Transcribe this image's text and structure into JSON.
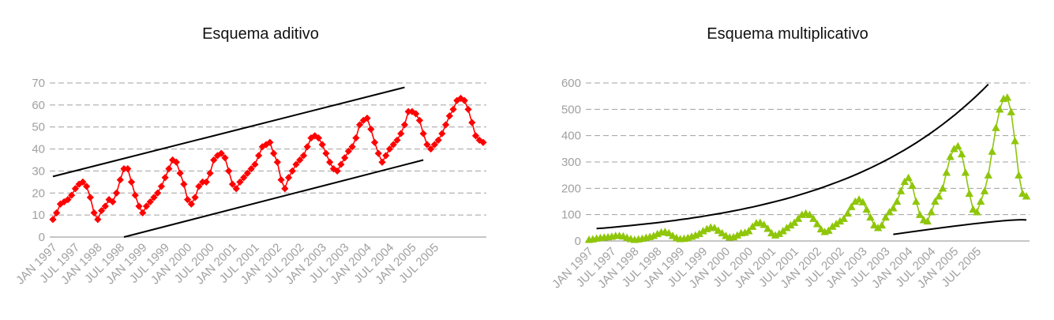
{
  "chart_data": [
    {
      "type": "line",
      "title": "Esquema aditivo",
      "xlabel": "",
      "ylabel": "",
      "ylim": [
        0,
        70
      ],
      "yticks": [
        0,
        10,
        20,
        30,
        40,
        50,
        60,
        70
      ],
      "grid": true,
      "marker": "diamond",
      "color": "#ff0000",
      "x_tick_labels": [
        "JAN 1997",
        "JUL 1997",
        "JAN 1998",
        "JUL 1998",
        "JAN 1999",
        "JUL 1999",
        "JAN 2000",
        "JUL 2000",
        "JAN 2001",
        "JUL 2001",
        "JAN 2002",
        "JUL 2002",
        "JAN 2003",
        "JUL 2003",
        "JAN 2004",
        "JUL 2004",
        "JAN 2005",
        "JUL 2005"
      ],
      "series": [
        {
          "values": [
            8,
            11,
            15,
            16,
            17,
            19,
            22,
            24,
            25,
            23,
            18,
            11,
            8,
            12,
            14,
            17,
            16,
            20,
            26,
            31,
            31,
            25,
            19,
            14,
            11,
            14,
            16,
            18,
            20,
            23,
            27,
            31,
            35,
            34,
            29,
            24,
            17,
            15,
            18,
            23,
            25,
            25,
            29,
            35,
            37,
            38,
            36,
            30,
            24,
            22,
            25,
            27,
            29,
            31,
            33,
            37,
            41,
            42,
            43,
            38,
            34,
            26,
            22,
            27,
            30,
            33,
            35,
            37,
            41,
            45,
            46,
            45,
            42,
            38,
            34,
            31,
            30,
            33,
            36,
            39,
            41,
            45,
            51,
            53,
            54,
            49,
            43,
            38,
            34,
            37,
            40,
            42,
            44,
            47,
            51,
            57,
            57,
            56,
            53,
            47,
            42,
            40,
            42,
            44,
            47,
            51,
            55,
            58,
            62,
            63,
            62,
            58,
            52,
            46,
            44,
            43
          ]
        }
      ],
      "envelope": {
        "upper": {
          "from": [
            0,
            27.5
          ],
          "to": [
            94,
            68
          ]
        },
        "lower": {
          "from": [
            19,
            0
          ],
          "to": [
            99,
            35
          ]
        }
      }
    },
    {
      "type": "line",
      "title": "Esquema multiplicativo",
      "xlabel": "",
      "ylabel": "",
      "ylim": [
        0,
        600
      ],
      "yticks": [
        0,
        100,
        200,
        300,
        400,
        500,
        600
      ],
      "grid": true,
      "marker": "triangle",
      "color": "#8fc60a",
      "x_tick_labels": [
        "JAN 1997",
        "JUL 1997",
        "JAN 1998",
        "JUL 1998",
        "JAN 1999",
        "JUL 1999",
        "JAN 2000",
        "JUL 2000",
        "JAN 2001",
        "JUL 2001",
        "JAN 2002",
        "JUL 2002",
        "JAN 2003",
        "JUL 2003",
        "JAN 2004",
        "JUL 2004",
        "JAN 2005",
        "JUL 2005"
      ],
      "series": [
        {
          "values": [
            5,
            7,
            10,
            12,
            14,
            15,
            17,
            20,
            20,
            18,
            13,
            8,
            5,
            7,
            9,
            13,
            16,
            20,
            27,
            33,
            35,
            30,
            20,
            12,
            8,
            9,
            12,
            17,
            22,
            28,
            38,
            46,
            52,
            50,
            40,
            30,
            20,
            14,
            15,
            22,
            30,
            32,
            38,
            55,
            68,
            70,
            62,
            47,
            30,
            22,
            28,
            38,
            50,
            60,
            70,
            85,
            100,
            105,
            100,
            85,
            65,
            45,
            35,
            40,
            55,
            65,
            75,
            85,
            105,
            130,
            150,
            158,
            148,
            120,
            90,
            60,
            50,
            60,
            90,
            110,
            125,
            150,
            190,
            225,
            240,
            210,
            150,
            100,
            80,
            75,
            110,
            150,
            170,
            200,
            260,
            320,
            350,
            360,
            330,
            260,
            180,
            120,
            110,
            150,
            190,
            250,
            340,
            430,
            500,
            540,
            545,
            490,
            380,
            250,
            180,
            170
          ]
        }
      ],
      "envelope": {
        "upper": {
          "curve": "exponential",
          "from": [
            2,
            47
          ],
          "to": [
            105,
            595
          ]
        },
        "lower": {
          "from": [
            80,
            25
          ],
          "to": [
            115,
            80
          ]
        }
      }
    }
  ]
}
